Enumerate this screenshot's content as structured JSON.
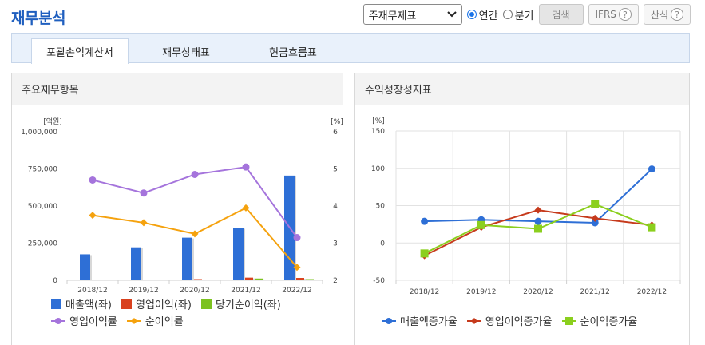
{
  "title": "재무분석",
  "controls": {
    "select_value": "주재무제표",
    "radio_annual": "연간",
    "radio_quarter": "분기",
    "search_label": "검색",
    "ifrs_label": "IFRS",
    "formula_label": "산식",
    "help_glyph": "?"
  },
  "tabs": [
    "포괄손익계산서",
    "재무상태표",
    "현금흐름표"
  ],
  "left_panel": {
    "title": "주요재무항목"
  },
  "right_panel": {
    "title": "수익성장성지표"
  },
  "colors": {
    "sales": "#2e6fd6",
    "op_income": "#d9411e",
    "net_income": "#7cc21f",
    "op_margin": "#a574dc",
    "net_margin": "#f5a20e",
    "sales_growth": "#2e6fd6",
    "op_growth": "#c63a1c",
    "net_growth": "#8bcf1e"
  },
  "chart_data": [
    {
      "type": "bar",
      "categories": [
        "2018/12",
        "2019/12",
        "2020/12",
        "2021/12",
        "2022/12"
      ],
      "ylabel": "[억원]",
      "y2label": "[%]",
      "yticks": [
        "0",
        "250,000",
        "500,000",
        "750,000",
        "1,000,000"
      ],
      "y2ticks": [
        "2",
        "3",
        "4",
        "5",
        "6"
      ],
      "ylim": [
        0,
        1000000
      ],
      "y2lim": [
        2,
        6
      ],
      "series": [
        {
          "name": "매출액(좌)",
          "type": "bar",
          "values": [
            175000,
            222000,
            287000,
            352000,
            705000
          ]
        },
        {
          "name": "영업이익(좌)",
          "type": "bar",
          "values": [
            700,
            1200,
            8000,
            18000,
            16000
          ]
        },
        {
          "name": "당기순이익(좌)",
          "type": "bar",
          "values": [
            500,
            1000,
            5000,
            12000,
            8000
          ]
        },
        {
          "name": "영업이익률",
          "type": "line",
          "axis": "right",
          "values": [
            4.7,
            4.35,
            4.85,
            5.05,
            3.15
          ]
        },
        {
          "name": "순이익률",
          "type": "line",
          "axis": "right",
          "values": [
            3.75,
            3.55,
            3.25,
            3.95,
            2.35
          ]
        }
      ]
    },
    {
      "type": "line",
      "categories": [
        "2018/12",
        "2019/12",
        "2020/12",
        "2021/12",
        "2022/12"
      ],
      "ylabel": "[%]",
      "yticks": [
        "-50",
        "0",
        "50",
        "100",
        "150"
      ],
      "ylim": [
        -50,
        150
      ],
      "series": [
        {
          "name": "매출액증가율",
          "values": [
            29,
            31,
            29,
            27,
            99
          ]
        },
        {
          "name": "영업이익증가율",
          "values": [
            -17,
            21,
            44,
            33,
            24
          ]
        },
        {
          "name": "순이익증가율",
          "values": [
            -14,
            24,
            19,
            52,
            21
          ]
        }
      ]
    }
  ]
}
